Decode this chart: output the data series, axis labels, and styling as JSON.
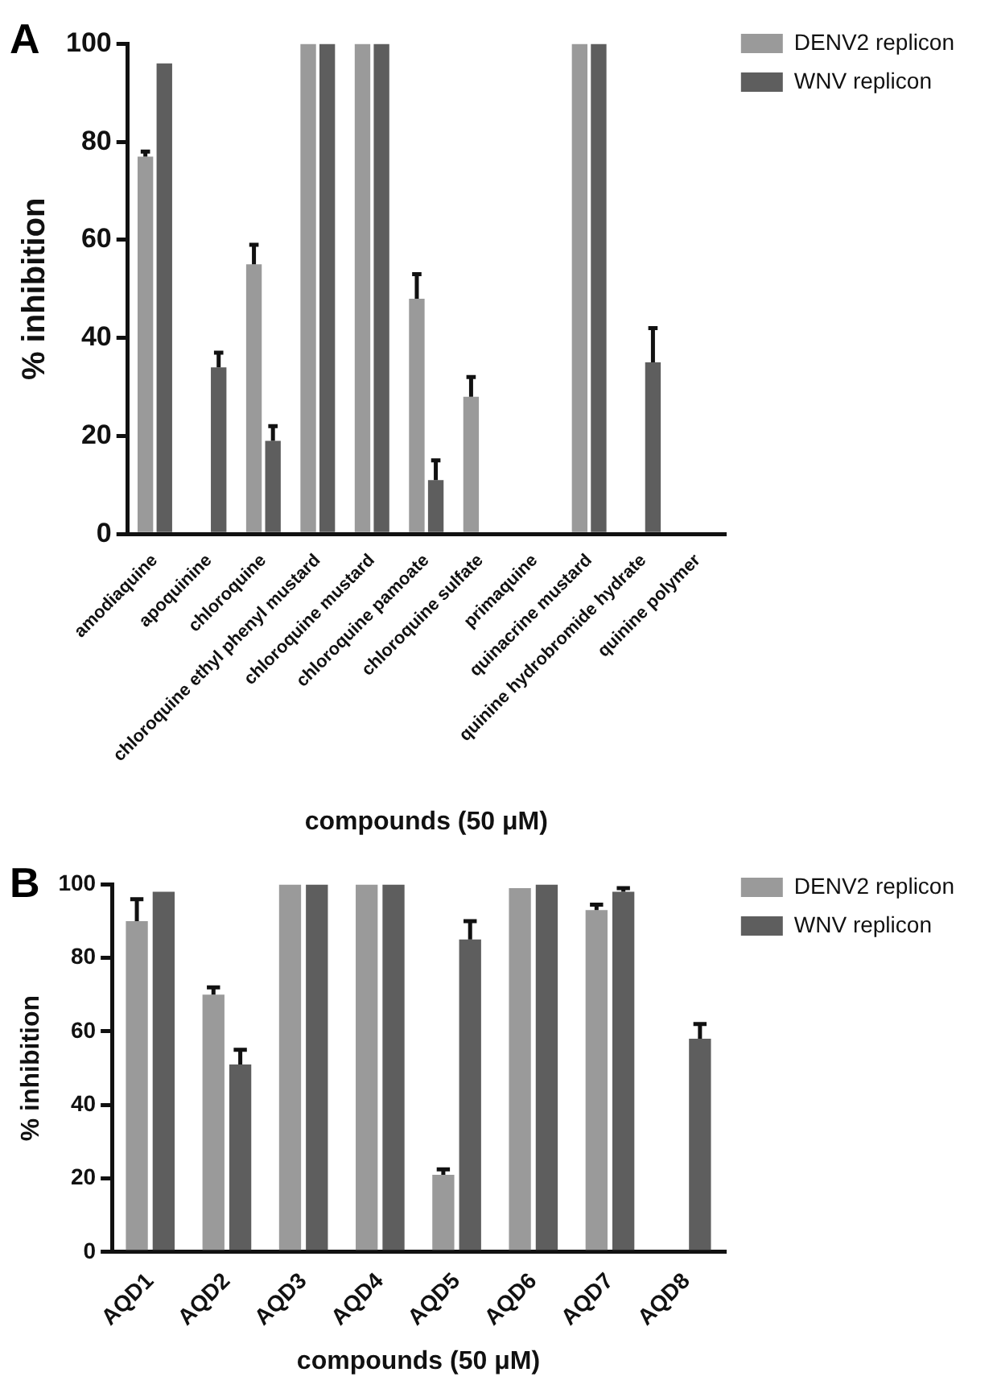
{
  "chart_data": [
    {
      "type": "bar",
      "title": "A",
      "xlabel": "compounds (50 μM)",
      "ylabel": "% inhibition",
      "categories": [
        "amodiaquine",
        "apoquinine",
        "chloroquine",
        "chloroquine ethyl phenyl mustard",
        "chloroquine mustard",
        "chloroquine pamoate",
        "chloroquine sulfate",
        "primaquine",
        "quinacrine mustard",
        "quinine hydrobromide hydrate",
        "quinine polymer"
      ],
      "series": [
        {
          "name": "DENV2 replicon",
          "color": "#9a9a9a",
          "values": [
            77,
            0,
            55,
            100,
            100,
            48,
            28,
            0,
            100,
            0,
            0
          ],
          "errors": [
            [
              77,
              78
            ],
            null,
            [
              55,
              59
            ],
            null,
            null,
            [
              48,
              53
            ],
            [
              28,
              32
            ],
            null,
            null,
            null,
            null
          ]
        },
        {
          "name": "WNV replicon",
          "color": "#5e5e5e",
          "values": [
            96,
            34,
            19,
            100,
            100,
            11,
            0,
            0,
            100,
            35,
            0
          ],
          "errors": [
            null,
            [
              34,
              37
            ],
            [
              19,
              22
            ],
            null,
            null,
            [
              11,
              15
            ],
            null,
            null,
            null,
            [
              35,
              42
            ],
            null
          ]
        }
      ],
      "ylim": [
        0,
        100
      ],
      "yticks": [
        0,
        20,
        40,
        60,
        80,
        100
      ],
      "grid": false,
      "legend": "top right"
    },
    {
      "type": "bar",
      "title": "B",
      "xlabel": "compounds (50 μM)",
      "ylabel": "% inhibition",
      "categories": [
        "AQD1",
        "AQD2",
        "AQD3",
        "AQD4",
        "AQD5",
        "AQD6",
        "AQD7",
        "AQD8"
      ],
      "series": [
        {
          "name": "DENV2 replicon",
          "color": "#9a9a9a",
          "values": [
            90,
            70,
            100,
            100,
            21,
            99,
            93,
            0
          ],
          "errors": [
            [
              90,
              96
            ],
            [
              70,
              72
            ],
            null,
            null,
            [
              21,
              22.5
            ],
            null,
            [
              93,
              94.5
            ],
            null
          ]
        },
        {
          "name": "WNV replicon",
          "color": "#5e5e5e",
          "values": [
            98,
            51,
            100,
            100,
            85,
            100,
            98,
            58
          ],
          "errors": [
            null,
            [
              51,
              55
            ],
            null,
            null,
            [
              85,
              90
            ],
            null,
            [
              98,
              99
            ],
            [
              58,
              62
            ]
          ]
        }
      ],
      "ylim": [
        0,
        100
      ],
      "yticks": [
        0,
        20,
        40,
        60,
        80,
        100
      ],
      "grid": false,
      "legend": "top right"
    }
  ]
}
